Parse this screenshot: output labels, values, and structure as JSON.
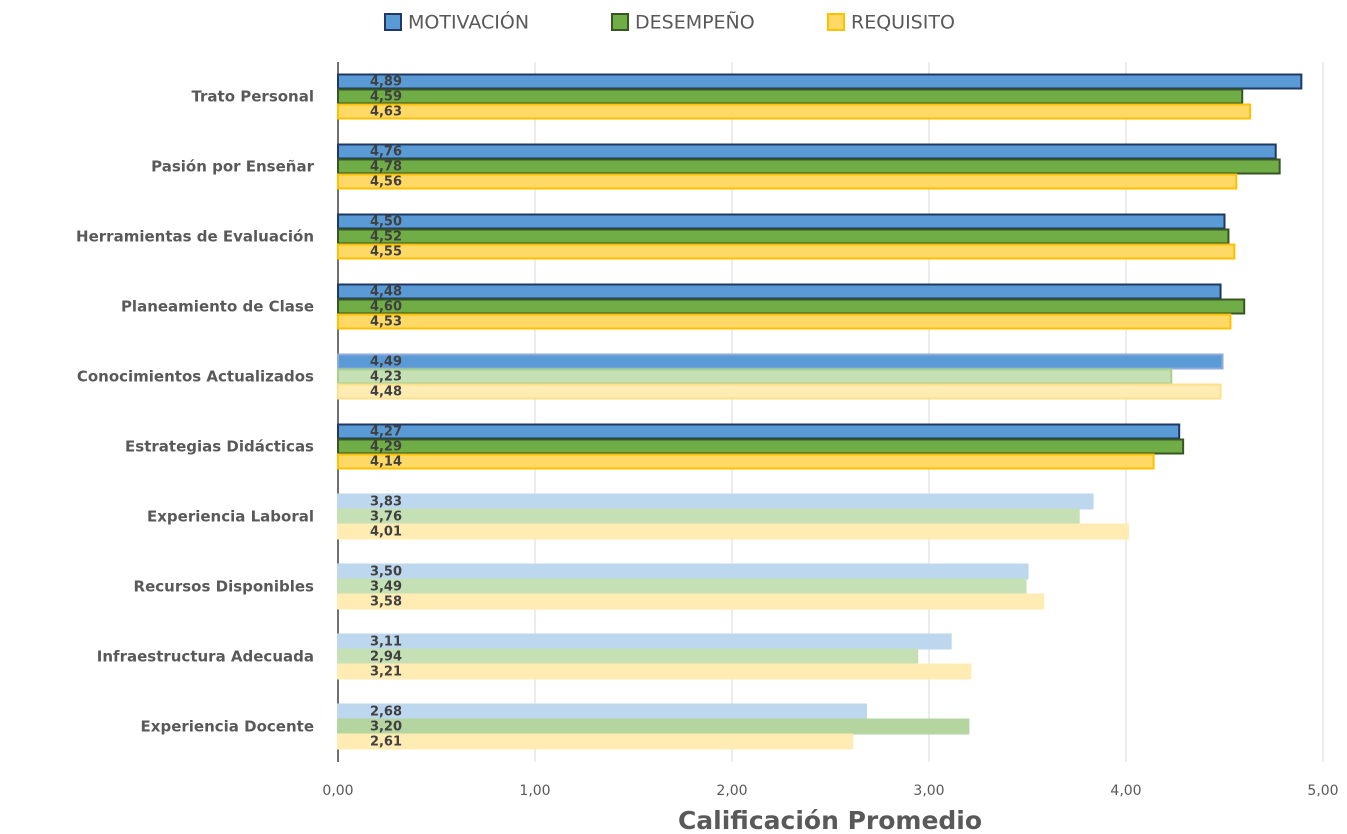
{
  "chart_data": {
    "type": "barh",
    "xlabel": "Calificación Promedio",
    "categories": [
      "Trato Personal",
      "Pasión por Enseñar",
      "Herramientas de Evaluación",
      "Planeamiento de Clase",
      "Conocimientos Actualizados",
      "Estrategias Didácticas",
      "Experiencia Laboral",
      "Recursos Disponibles",
      "Infraestructura Adecuada",
      "Experiencia Docente"
    ],
    "series": [
      {
        "name": "MOTIVACIÓN",
        "color": "#5b9bd5",
        "edgecolor": "#1f3864",
        "values": [
          4.89,
          4.76,
          4.5,
          4.48,
          4.49,
          4.27,
          3.83,
          3.5,
          3.11,
          2.68
        ],
        "value_labels": [
          "4,89",
          "4,76",
          "4,50",
          "4,48",
          "4,49",
          "4,27",
          "3,83",
          "3,50",
          "3,11",
          "2,68"
        ],
        "bar_colors": [
          "#5b9bd5",
          "#5b9bd5",
          "#5b9bd5",
          "#5b9bd5",
          "#5b9bd5",
          "#5b9bd5",
          "#bdd7ee",
          "#bdd7ee",
          "#bdd7ee",
          "#bdd7ee"
        ],
        "bar_edgecolors": [
          "#1f3864",
          "#1f3864",
          "#1f3864",
          "#1f3864",
          "#8faadc",
          "#1f3864",
          "#bdd7ee",
          "#bdd7ee",
          "#bdd7ee",
          "#bdd7ee"
        ]
      },
      {
        "name": "DESEMPEÑO",
        "color": "#70ad47",
        "edgecolor": "#375623",
        "values": [
          4.59,
          4.78,
          4.52,
          4.6,
          4.23,
          4.29,
          3.76,
          3.49,
          2.94,
          3.2
        ],
        "value_labels": [
          "4,59",
          "4,78",
          "4,52",
          "4,60",
          "4,23",
          "4,29",
          "3,76",
          "3,49",
          "2,94",
          "3,20"
        ],
        "bar_colors": [
          "#70ad47",
          "#70ad47",
          "#70ad47",
          "#70ad47",
          "#c5e0b4",
          "#70ad47",
          "#c5e0b4",
          "#c5e0b4",
          "#c5e0b4",
          "#b4d4a0"
        ],
        "bar_edgecolors": [
          "#375623",
          "#375623",
          "#375623",
          "#375623",
          "#a9d18e",
          "#375623",
          "#c5e0b4",
          "#c5e0b4",
          "#c5e0b4",
          "#b4d4a0"
        ]
      },
      {
        "name": "REQUISITO",
        "color": "#ffd966",
        "edgecolor": "#ffc000",
        "values": [
          4.63,
          4.56,
          4.55,
          4.53,
          4.48,
          4.14,
          4.01,
          3.58,
          3.21,
          2.61
        ],
        "value_labels": [
          "4,63",
          "4,56",
          "4,55",
          "4,53",
          "4,48",
          "4,14",
          "4,01",
          "3,58",
          "3,21",
          "2,61"
        ],
        "bar_colors": [
          "#ffd966",
          "#ffd966",
          "#ffd966",
          "#ffd966",
          "#ffecb3",
          "#ffd966",
          "#ffecb3",
          "#ffecb3",
          "#ffecb3",
          "#ffecb3"
        ],
        "bar_edgecolors": [
          "#ffc000",
          "#ffc000",
          "#ffc000",
          "#ffc000",
          "#ffe08a",
          "#ffc000",
          "#ffecb3",
          "#ffecb3",
          "#ffecb3",
          "#ffecb3"
        ]
      }
    ],
    "xlim": [
      0,
      5
    ],
    "xticks": [
      {
        "value": 0,
        "label": "0,00"
      },
      {
        "value": 1,
        "label": "1,00"
      },
      {
        "value": 2,
        "label": "2,00"
      },
      {
        "value": 3,
        "label": "3,00"
      },
      {
        "value": 4,
        "label": "4,00"
      },
      {
        "value": 5,
        "label": "5,00"
      }
    ],
    "grid": true,
    "legend": "top"
  }
}
